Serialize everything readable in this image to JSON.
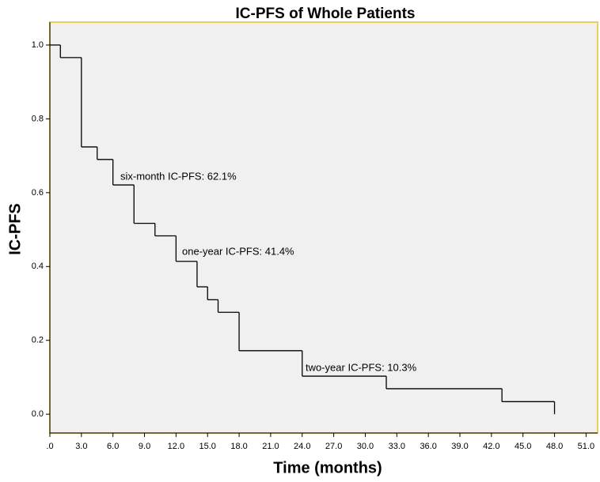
{
  "chart_data": {
    "type": "step",
    "title": "IC-PFS of Whole Patients",
    "x_label": "Time (months)",
    "y_label": "IC-PFS",
    "x": [
      0,
      1,
      3,
      4.5,
      6,
      8,
      10,
      12,
      14,
      15,
      16,
      18,
      24,
      32,
      43,
      48
    ],
    "values": [
      1.0,
      0.966,
      0.724,
      0.69,
      0.621,
      0.517,
      0.483,
      0.414,
      0.345,
      0.31,
      0.276,
      0.172,
      0.103,
      0.069,
      0.034,
      0.0
    ],
    "color": "#000000",
    "xlim": [
      0,
      52.1
    ],
    "ylim": [
      -0.051,
      1.062
    ],
    "xticks": [
      {
        "value": 0,
        "label": ".0"
      },
      {
        "value": 3,
        "label": "3.0"
      },
      {
        "value": 6,
        "label": "6.0"
      },
      {
        "value": 9,
        "label": "9.0"
      },
      {
        "value": 12,
        "label": "12.0"
      },
      {
        "value": 15,
        "label": "15.0"
      },
      {
        "value": 18,
        "label": "18.0"
      },
      {
        "value": 21,
        "label": "21.0"
      },
      {
        "value": 24,
        "label": "24.0"
      },
      {
        "value": 27,
        "label": "27.0"
      },
      {
        "value": 30,
        "label": "30.0"
      },
      {
        "value": 33,
        "label": "33.0"
      },
      {
        "value": 36,
        "label": "36.0"
      },
      {
        "value": 39,
        "label": "39.0"
      },
      {
        "value": 42,
        "label": "42.0"
      },
      {
        "value": 45,
        "label": "45.0"
      },
      {
        "value": 48,
        "label": "48.0"
      },
      {
        "value": 51,
        "label": "51.0"
      }
    ],
    "yticks": [
      {
        "value": 0,
        "label": "0.0"
      },
      {
        "value": 0.2,
        "label": "0.2"
      },
      {
        "value": 0.4,
        "label": "0.4"
      },
      {
        "value": 0.6,
        "label": "0.6"
      },
      {
        "value": 0.8,
        "label": "0.8"
      },
      {
        "value": 1,
        "label": "1.0"
      }
    ],
    "annotations": [
      "six-month IC-PFS: 62.1%",
      "one-year IC-PFS: 41.4%",
      "two-year IC-PFS: 10.3%"
    ]
  }
}
